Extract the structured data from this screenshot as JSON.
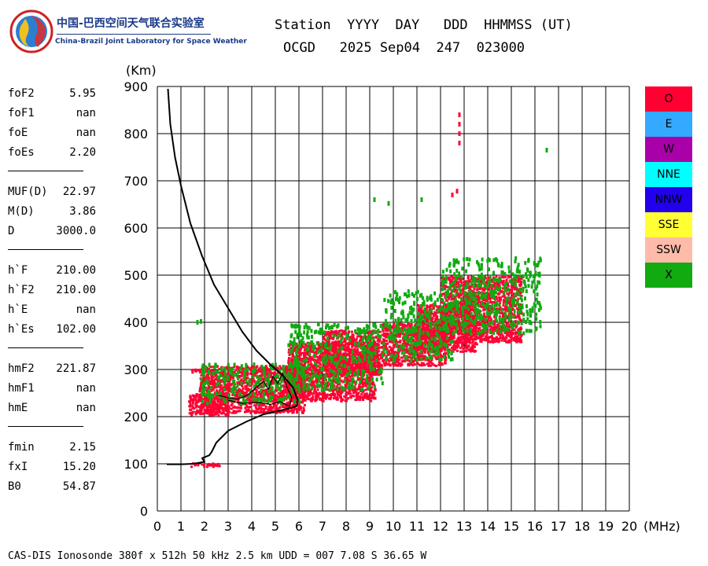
{
  "logo": {
    "cn": "中国-巴西空间天气联合实验室",
    "en": "China-Brazil Joint Laboratory for Space Weather"
  },
  "header": {
    "line1": "Station  YYYY  DAY   DDD  HHMMSS (UT)",
    "line2": "OCGD   2025 Sep04  247  023000"
  },
  "parameters": [
    [
      {
        "name": "foF2",
        "value": "5.95"
      },
      {
        "name": "foF1",
        "value": "nan"
      },
      {
        "name": "foE",
        "value": "nan"
      },
      {
        "name": "foEs",
        "value": "2.20"
      }
    ],
    [
      {
        "name": "MUF(D)",
        "value": "22.97"
      },
      {
        "name": "M(D)",
        "value": "3.86"
      },
      {
        "name": "D",
        "value": "3000.0"
      }
    ],
    [
      {
        "name": "h`F",
        "value": "210.00"
      },
      {
        "name": "h`F2",
        "value": "210.00"
      },
      {
        "name": "h`E",
        "value": "nan"
      },
      {
        "name": "h`Es",
        "value": "102.00"
      }
    ],
    [
      {
        "name": "hmF2",
        "value": "221.87"
      },
      {
        "name": "hmF1",
        "value": "nan"
      },
      {
        "name": "hmE",
        "value": "nan"
      }
    ],
    [
      {
        "name": "fmin",
        "value": "2.15"
      },
      {
        "name": "fxI",
        "value": "15.20"
      },
      {
        "name": "B0",
        "value": "54.87"
      }
    ]
  ],
  "chart_data": {
    "type": "scatter",
    "xlabel": "(MHz)",
    "ylabel": "(Km)",
    "xlim": [
      0,
      20
    ],
    "ylim": [
      0,
      900
    ],
    "xticks": [
      "0",
      "1",
      "2",
      "3",
      "4",
      "5",
      "6",
      "7",
      "8",
      "9",
      "10",
      "11",
      "12",
      "13",
      "14",
      "15",
      "16",
      "17",
      "18",
      "19",
      "20"
    ],
    "yticks": [
      "0",
      "100",
      "200",
      "300",
      "400",
      "500",
      "600",
      "700",
      "800",
      "900"
    ],
    "grid": true,
    "legend": {
      "placement": "right",
      "entries": [
        {
          "label": "O",
          "color": "#ff0033"
        },
        {
          "label": "E",
          "color": "#33aaff"
        },
        {
          "label": "W",
          "color": "#aa00aa"
        },
        {
          "label": "NNE",
          "color": "#00ffff"
        },
        {
          "label": "NNW",
          "color": "#2200ee"
        },
        {
          "label": "SSE",
          "color": "#ffff33"
        },
        {
          "label": "SSW",
          "color": "#ffbbaa"
        },
        {
          "label": "X",
          "color": "#11aa11"
        }
      ]
    },
    "series": [
      {
        "name": "O",
        "regions": [
          {
            "x": [
              1.75,
              6.2
            ],
            "y": [
              210,
              310
            ]
          },
          {
            "x": [
              1.3,
              3.0
            ],
            "y": [
              205,
              250
            ]
          },
          {
            "x": [
              5.5,
              9.2
            ],
            "y": [
              235,
              360
            ]
          },
          {
            "x": [
              7.0,
              9.5
            ],
            "y": [
              290,
              385
            ]
          },
          {
            "x": [
              9.5,
              12.2
            ],
            "y": [
              310,
              400
            ]
          },
          {
            "x": [
              11.0,
              13.5
            ],
            "y": [
              340,
              440
            ]
          },
          {
            "x": [
              12.0,
              15.4
            ],
            "y": [
              360,
              500
            ]
          },
          {
            "x": [
              1.4,
              2.6
            ],
            "y": [
              96,
              104
            ]
          },
          {
            "x": [
              1.4,
              2.2
            ],
            "y": [
              296,
              306
            ]
          }
        ],
        "points": [
          {
            "x": 12.8,
            "y": 780
          },
          {
            "x": 12.8,
            "y": 800
          },
          {
            "x": 12.8,
            "y": 820
          },
          {
            "x": 12.8,
            "y": 840
          },
          {
            "x": 12.5,
            "y": 670
          },
          {
            "x": 12.7,
            "y": 678
          }
        ]
      },
      {
        "name": "X",
        "regions": [
          {
            "x": [
              1.8,
              6.0
            ],
            "y": [
              230,
              315
            ]
          },
          {
            "x": [
              5.5,
              9.5
            ],
            "y": [
              260,
              400
            ]
          },
          {
            "x": [
              9.5,
              12.5
            ],
            "y": [
              320,
              470
            ]
          },
          {
            "x": [
              12.0,
              16.2
            ],
            "y": [
              380,
              540
            ]
          }
        ],
        "points": [
          {
            "x": 1.7,
            "y": 400
          },
          {
            "x": 1.85,
            "y": 402
          },
          {
            "x": 9.2,
            "y": 660
          },
          {
            "x": 9.8,
            "y": 652
          },
          {
            "x": 11.2,
            "y": 660
          },
          {
            "x": 16.5,
            "y": 765
          },
          {
            "x": 16.2,
            "y": 500
          }
        ]
      },
      {
        "name": "profile",
        "line": [
          {
            "x": 0.45,
            "y": 895
          },
          {
            "x": 0.55,
            "y": 820
          },
          {
            "x": 0.75,
            "y": 750
          },
          {
            "x": 1.0,
            "y": 690
          },
          {
            "x": 1.4,
            "y": 610
          },
          {
            "x": 1.9,
            "y": 540
          },
          {
            "x": 2.4,
            "y": 480
          },
          {
            "x": 3.0,
            "y": 430
          },
          {
            "x": 3.6,
            "y": 380
          },
          {
            "x": 4.2,
            "y": 340
          },
          {
            "x": 4.8,
            "y": 310
          },
          {
            "x": 5.3,
            "y": 288
          },
          {
            "x": 5.75,
            "y": 262
          },
          {
            "x": 5.95,
            "y": 235
          },
          {
            "x": 5.9,
            "y": 222
          },
          {
            "x": 5.3,
            "y": 214
          },
          {
            "x": 4.5,
            "y": 205
          },
          {
            "x": 3.8,
            "y": 190
          },
          {
            "x": 3.0,
            "y": 170
          },
          {
            "x": 2.5,
            "y": 145
          },
          {
            "x": 2.3,
            "y": 125
          },
          {
            "x": 2.2,
            "y": 118
          },
          {
            "x": 1.9,
            "y": 112
          },
          {
            "x": 2.0,
            "y": 104
          },
          {
            "x": 1.5,
            "y": 100
          },
          {
            "x": 1.0,
            "y": 99
          },
          {
            "x": 0.4,
            "y": 99
          }
        ]
      },
      {
        "name": "trace",
        "line": [
          {
            "x": 2.6,
            "y": 245
          },
          {
            "x": 3.0,
            "y": 240
          },
          {
            "x": 3.4,
            "y": 237
          },
          {
            "x": 3.8,
            "y": 245
          },
          {
            "x": 4.2,
            "y": 262
          },
          {
            "x": 4.5,
            "y": 275
          },
          {
            "x": 4.7,
            "y": 258
          },
          {
            "x": 4.9,
            "y": 285
          },
          {
            "x": 5.1,
            "y": 270
          },
          {
            "x": 5.3,
            "y": 292
          },
          {
            "x": 5.5,
            "y": 262
          },
          {
            "x": 5.7,
            "y": 240
          },
          {
            "x": 5.6,
            "y": 222
          },
          {
            "x": 5.2,
            "y": 232
          },
          {
            "x": 4.8,
            "y": 226
          },
          {
            "x": 4.3,
            "y": 230
          },
          {
            "x": 3.6,
            "y": 228
          },
          {
            "x": 3.0,
            "y": 235
          }
        ]
      }
    ]
  },
  "footer": "CAS-DIS Ionosonde 380f x 512h 50 kHz 2.5 km UDD = 007 7.08 S 36.65 W"
}
